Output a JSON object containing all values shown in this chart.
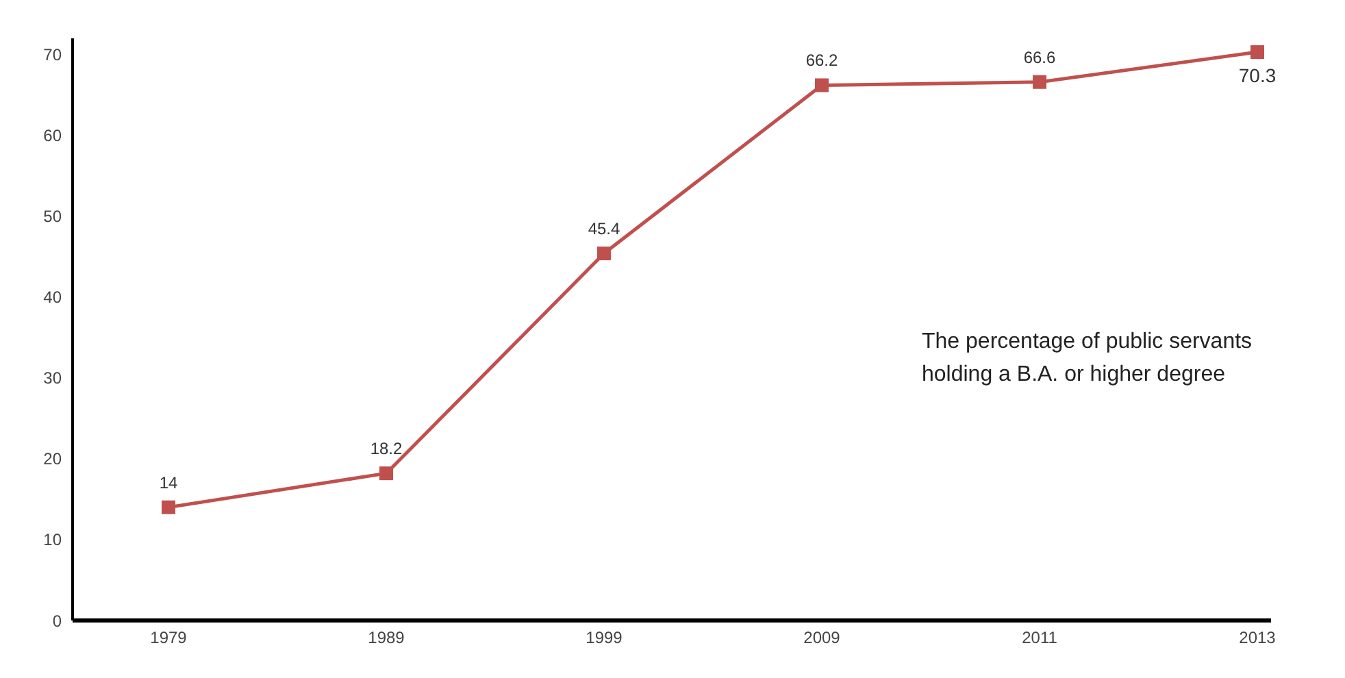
{
  "chart_data": {
    "type": "line",
    "categories": [
      "1979",
      "1989",
      "1999",
      "2009",
      "2011",
      "2013"
    ],
    "series": [
      {
        "color": "#c0504d",
        "values": [
          14,
          18.2,
          45.4,
          66.2,
          66.6,
          70.3
        ]
      }
    ],
    "ylim": [
      0,
      72
    ],
    "yticks": [
      0,
      10,
      20,
      30,
      40,
      50,
      60,
      70
    ],
    "grid": false,
    "legend": false,
    "marker": "square",
    "line_style": "solid",
    "data_labels": true,
    "annotations": [
      "The percentage of public servants holding a B.A. or higher degree"
    ]
  }
}
